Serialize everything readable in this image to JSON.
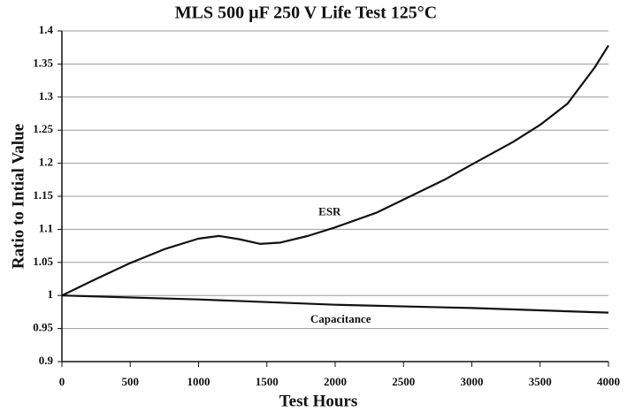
{
  "chart_data": {
    "type": "line",
    "title": "MLS 500 µF 250 V Life Test 125°C",
    "x_label": "Test Hours",
    "y_label": "Ratio to Intial Value",
    "xlim": [
      0,
      4000
    ],
    "xticks": [
      0,
      500,
      1000,
      1500,
      2000,
      2500,
      3000,
      3500,
      4000
    ],
    "ylim": [
      0.9,
      1.4
    ],
    "yticks": [
      0.9,
      0.95,
      1,
      1.05,
      1.1,
      1.15,
      1.2,
      1.25,
      1.3,
      1.35,
      1.4
    ],
    "grid": true,
    "series": [
      {
        "name": "ESR",
        "color": "#111111",
        "x": [
          0,
          250,
          500,
          750,
          1000,
          1150,
          1300,
          1450,
          1600,
          1800,
          2000,
          2300,
          2500,
          2800,
          3000,
          3300,
          3500,
          3700,
          3900,
          4000
        ],
        "values": [
          1.0,
          1.025,
          1.049,
          1.07,
          1.086,
          1.09,
          1.085,
          1.078,
          1.08,
          1.09,
          1.103,
          1.125,
          1.145,
          1.175,
          1.198,
          1.232,
          1.258,
          1.29,
          1.345,
          1.378
        ]
      },
      {
        "name": "Capacitance",
        "color": "#111111",
        "x": [
          0,
          1000,
          2000,
          3000,
          4000
        ],
        "values": [
          1.0,
          0.994,
          0.986,
          0.981,
          0.974
        ]
      }
    ]
  }
}
